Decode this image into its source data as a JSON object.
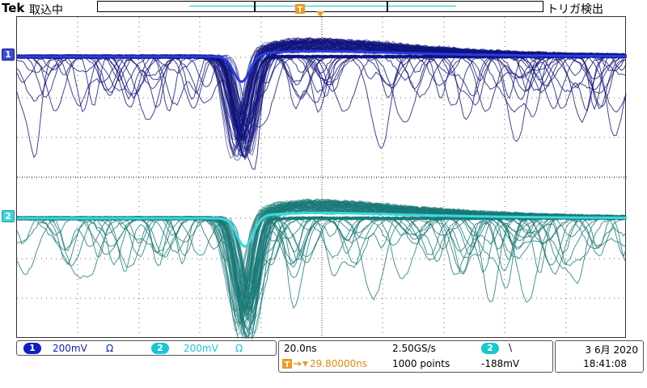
{
  "header": {
    "brand": "Tek",
    "acquisition_status": "取込中",
    "trigger_status": "トリガ検出"
  },
  "markers": {
    "ch1": "1",
    "ch2": "2",
    "trigger_position": "T"
  },
  "channels": [
    {
      "number": "1",
      "scale": "200mV",
      "coupling_symbol": "Ω",
      "color": "#1020c0"
    },
    {
      "number": "2",
      "scale": "200mV",
      "coupling_symbol": "Ω",
      "color": "#18c8d0"
    }
  ],
  "timebase": {
    "scale": "20.0ns",
    "sample_rate": "2.50GS/s",
    "record_length": "1000 points",
    "trigger_position": "29.80000ns",
    "trigger_source": "2",
    "trigger_slope_symbol": "\\",
    "trigger_level": "-188mV"
  },
  "clock": {
    "date": "3 6月 2020",
    "time": "18:41:08"
  },
  "colors": {
    "ch1_trace": "#10147c",
    "ch1_avg": "#2a3ae8",
    "ch2_trace": "#1a7a78",
    "ch2_avg": "#38d8e0",
    "trigger": "#f09a20",
    "record_line": "#00c8d8"
  }
}
